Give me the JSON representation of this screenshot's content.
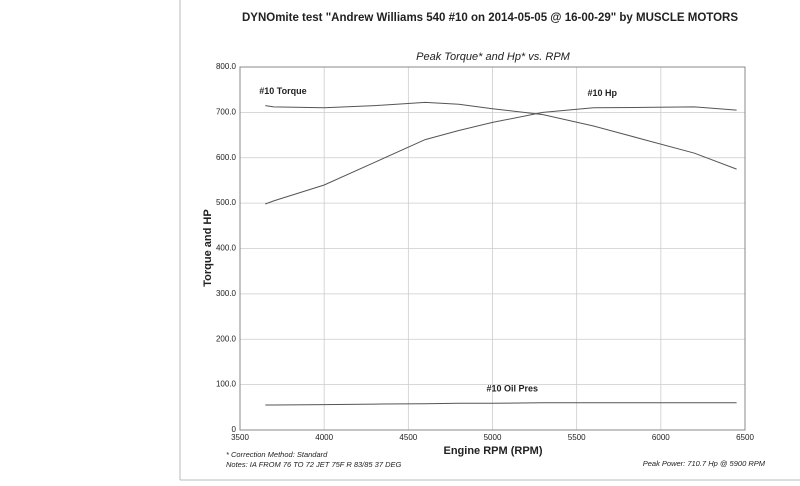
{
  "chart_data": {
    "type": "line",
    "title": "DYNOmite test \"Andrew Williams 540 #10 on 2014-05-05 @ 16-00-29\" by MUSCLE MOTORS",
    "subtitle": "Peak Torque* and Hp* vs. RPM",
    "x_label": "Engine RPM (RPM)",
    "y_label": "Torque and HP",
    "x": [
      3650,
      3700,
      4000,
      4300,
      4600,
      4800,
      5000,
      5300,
      5600,
      5900,
      6200,
      6450
    ],
    "series": [
      {
        "name": "#10 Torque",
        "color": "#555555",
        "values": [
          715,
          712,
          710,
          715,
          722,
          718,
          708,
          695,
          670,
          640,
          610,
          575
        ]
      },
      {
        "name": "#10 Hp",
        "color": "#555555",
        "values": [
          498,
          505,
          540,
          590,
          640,
          660,
          678,
          700,
          710,
          711,
          712,
          705
        ]
      },
      {
        "name": "#10 Oil Pres",
        "color": "#555555",
        "values": [
          55,
          55,
          56,
          57,
          58,
          59,
          59,
          60,
          60,
          60,
          60,
          60
        ]
      }
    ],
    "xlim": [
      3500,
      6500
    ],
    "xticks": [
      3500,
      4000,
      4500,
      5000,
      5500,
      6000,
      6500
    ],
    "ylim": [
      0,
      800
    ],
    "yticks": [
      0,
      {
        "value": 100,
        "label": "100.0"
      },
      {
        "value": 200,
        "label": "200.0"
      },
      {
        "value": 300,
        "label": "300.0"
      },
      {
        "value": 400,
        "label": "400.0"
      },
      {
        "value": 500,
        "label": "500.0"
      },
      {
        "value": 600,
        "label": "600.0"
      },
      {
        "value": 700,
        "label": "700.0"
      },
      {
        "value": 800,
        "label": "800.0"
      }
    ],
    "grid": true,
    "footnote": "* Correction Method: Standard",
    "notes": "Notes: IA FROM 76 TO 72 JET 75F R 83/85 37 DEG",
    "peak_note": "Peak Power: 710.7 Hp @ 5900 RPM"
  }
}
